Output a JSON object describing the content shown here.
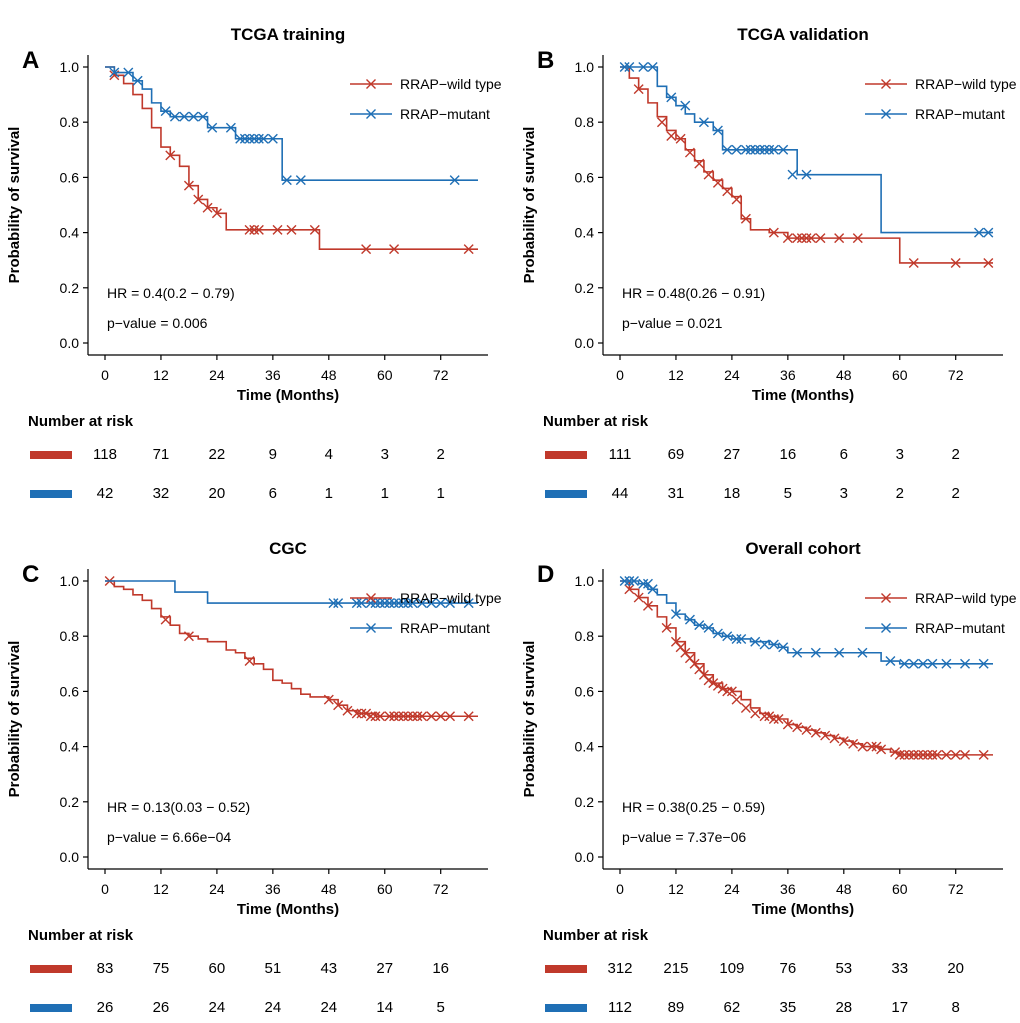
{
  "chart_data": [
    {
      "type": "line",
      "panel": "A",
      "title": "TCGA training",
      "xlabel": "Time (Months)",
      "ylabel": "Probability of survival",
      "xlim": [
        0,
        80
      ],
      "ylim": [
        0,
        1
      ],
      "x_ticks": [
        0,
        12,
        24,
        36,
        48,
        60,
        72
      ],
      "y_ticks": [
        0.0,
        0.2,
        0.4,
        0.6,
        0.8,
        1.0
      ],
      "y_tick_labels": [
        "0.0",
        "0.2",
        "0.4",
        "0.6",
        "0.8",
        "1.0"
      ],
      "legend": "top-right",
      "annotations": [
        "HR = 0.4(0.2 − 0.79)",
        "p−value = 0.006"
      ],
      "series": [
        {
          "name": "RRAP−wild type",
          "color": "#c0392b",
          "x": [
            0,
            2,
            4,
            6,
            8,
            10,
            12,
            14,
            16,
            18,
            20,
            22,
            24,
            26,
            30,
            36,
            42,
            46,
            80
          ],
          "y": [
            1.0,
            0.97,
            0.94,
            0.9,
            0.85,
            0.78,
            0.71,
            0.68,
            0.64,
            0.57,
            0.52,
            0.49,
            0.47,
            0.41,
            0.41,
            0.41,
            0.41,
            0.34,
            0.34
          ],
          "censor_x": [
            2,
            14,
            18,
            20,
            22,
            24,
            31,
            32,
            33,
            37,
            40,
            45,
            56,
            62,
            78
          ],
          "censor_y": [
            0.97,
            0.68,
            0.57,
            0.52,
            0.49,
            0.47,
            0.41,
            0.41,
            0.41,
            0.41,
            0.41,
            0.41,
            0.34,
            0.34,
            0.34
          ]
        },
        {
          "name": "RRAP−mutant",
          "color": "#1f6fb5",
          "x": [
            0,
            2,
            6,
            8,
            10,
            12,
            14,
            22,
            28,
            36,
            38,
            80
          ],
          "y": [
            1.0,
            0.98,
            0.95,
            0.92,
            0.87,
            0.84,
            0.82,
            0.78,
            0.74,
            0.74,
            0.59,
            0.59
          ],
          "censor_x": [
            2,
            5,
            7,
            13,
            15,
            17,
            19,
            21,
            23,
            27,
            29,
            30,
            31,
            32,
            33,
            34,
            36,
            39,
            42,
            75
          ],
          "censor_y": [
            0.98,
            0.98,
            0.95,
            0.84,
            0.82,
            0.82,
            0.82,
            0.82,
            0.78,
            0.78,
            0.74,
            0.74,
            0.74,
            0.74,
            0.74,
            0.74,
            0.74,
            0.59,
            0.59,
            0.59
          ]
        }
      ],
      "risk_table": {
        "title": "Number at risk",
        "times": [
          0,
          12,
          24,
          36,
          48,
          60,
          72
        ],
        "rows": [
          [
            118,
            71,
            22,
            9,
            4,
            3,
            2
          ],
          [
            42,
            32,
            20,
            6,
            1,
            1,
            1
          ]
        ]
      }
    },
    {
      "type": "line",
      "panel": "B",
      "title": "TCGA validation",
      "xlabel": "Time (Months)",
      "ylabel": "Probability of survival",
      "xlim": [
        0,
        80
      ],
      "ylim": [
        0,
        1
      ],
      "x_ticks": [
        0,
        12,
        24,
        36,
        48,
        60,
        72
      ],
      "y_ticks": [
        0.0,
        0.2,
        0.4,
        0.6,
        0.8,
        1.0
      ],
      "y_tick_labels": [
        "0.0",
        "0.2",
        "0.4",
        "0.6",
        "0.8",
        "1.0"
      ],
      "legend": "top-right",
      "annotations": [
        "HR = 0.48(0.26 − 0.91)",
        "p−value = 0.021"
      ],
      "series": [
        {
          "name": "RRAP−wild type",
          "color": "#c0392b",
          "x": [
            0,
            2,
            4,
            6,
            8,
            10,
            12,
            14,
            16,
            18,
            20,
            22,
            24,
            26,
            28,
            32,
            36,
            40,
            48,
            56,
            60,
            80
          ],
          "y": [
            1.0,
            0.96,
            0.92,
            0.87,
            0.82,
            0.77,
            0.74,
            0.7,
            0.66,
            0.62,
            0.59,
            0.56,
            0.53,
            0.45,
            0.41,
            0.4,
            0.38,
            0.38,
            0.38,
            0.38,
            0.29,
            0.29
          ],
          "censor_x": [
            4,
            9,
            11,
            13,
            15,
            17,
            19,
            21,
            23,
            25,
            27,
            33,
            36,
            38,
            39,
            40,
            41,
            43,
            47,
            51,
            63,
            72,
            79
          ],
          "censor_y": [
            0.92,
            0.8,
            0.75,
            0.74,
            0.69,
            0.65,
            0.61,
            0.58,
            0.55,
            0.52,
            0.45,
            0.4,
            0.38,
            0.38,
            0.38,
            0.38,
            0.38,
            0.38,
            0.38,
            0.38,
            0.29,
            0.29,
            0.29
          ]
        },
        {
          "name": "RRAP−mutant",
          "color": "#1f6fb5",
          "x": [
            0,
            6,
            8,
            10,
            12,
            14,
            16,
            20,
            22,
            35,
            38,
            56,
            80
          ],
          "y": [
            1.0,
            1.0,
            0.93,
            0.89,
            0.86,
            0.83,
            0.8,
            0.77,
            0.7,
            0.7,
            0.61,
            0.4,
            0.4
          ],
          "censor_x": [
            1,
            2,
            5,
            7,
            11,
            14,
            18,
            21,
            23,
            25,
            27,
            28,
            29,
            30,
            31,
            32,
            33,
            35,
            37,
            40,
            77,
            79
          ],
          "censor_y": [
            1.0,
            1.0,
            1.0,
            1.0,
            0.89,
            0.86,
            0.8,
            0.77,
            0.7,
            0.7,
            0.7,
            0.7,
            0.7,
            0.7,
            0.7,
            0.7,
            0.7,
            0.7,
            0.61,
            0.61,
            0.4,
            0.4
          ]
        }
      ],
      "risk_table": {
        "title": "Number at risk",
        "times": [
          0,
          12,
          24,
          36,
          48,
          60,
          72
        ],
        "rows": [
          [
            111,
            69,
            27,
            16,
            6,
            3,
            2
          ],
          [
            44,
            31,
            18,
            5,
            3,
            2,
            2
          ]
        ]
      }
    },
    {
      "type": "line",
      "panel": "C",
      "title": "CGC",
      "xlabel": "Time (Months)",
      "ylabel": "Probability of survival",
      "xlim": [
        0,
        80
      ],
      "ylim": [
        0,
        1
      ],
      "x_ticks": [
        0,
        12,
        24,
        36,
        48,
        60,
        72
      ],
      "y_ticks": [
        0.0,
        0.2,
        0.4,
        0.6,
        0.8,
        1.0
      ],
      "y_tick_labels": [
        "0.0",
        "0.2",
        "0.4",
        "0.6",
        "0.8",
        "1.0"
      ],
      "legend": "top-right",
      "annotations": [
        "HR = 0.13(0.03 − 0.52)",
        "p−value = 6.66e−04"
      ],
      "series": [
        {
          "name": "RRAP−wild type",
          "color": "#c0392b",
          "x": [
            0,
            2,
            4,
            6,
            8,
            10,
            12,
            14,
            16,
            18,
            20,
            22,
            24,
            26,
            28,
            30,
            32,
            34,
            36,
            38,
            40,
            42,
            44,
            46,
            48,
            50,
            52,
            54,
            56,
            58,
            80
          ],
          "y": [
            1.0,
            0.98,
            0.97,
            0.95,
            0.93,
            0.9,
            0.87,
            0.84,
            0.81,
            0.8,
            0.79,
            0.78,
            0.78,
            0.75,
            0.74,
            0.72,
            0.7,
            0.68,
            0.64,
            0.63,
            0.61,
            0.59,
            0.58,
            0.58,
            0.57,
            0.55,
            0.53,
            0.52,
            0.52,
            0.51,
            0.51
          ],
          "censor_x": [
            1,
            13,
            18,
            31,
            48,
            50,
            52,
            54,
            55,
            56,
            57,
            58,
            59,
            61,
            62,
            63,
            64,
            65,
            66,
            67,
            68,
            70,
            72,
            74,
            78
          ],
          "censor_y": [
            1.0,
            0.86,
            0.8,
            0.71,
            0.57,
            0.55,
            0.53,
            0.52,
            0.52,
            0.52,
            0.51,
            0.51,
            0.51,
            0.51,
            0.51,
            0.51,
            0.51,
            0.51,
            0.51,
            0.51,
            0.51,
            0.51,
            0.51,
            0.51,
            0.51
          ]
        },
        {
          "name": "RRAP−mutant",
          "color": "#1f6fb5",
          "x": [
            0,
            15,
            22,
            80
          ],
          "y": [
            1.0,
            0.96,
            0.92,
            0.92
          ],
          "censor_x": [
            49,
            50,
            54,
            55,
            57,
            58,
            59,
            60,
            61,
            62,
            63,
            64,
            65,
            66,
            68,
            70,
            72,
            74,
            78
          ],
          "censor_y": [
            0.92,
            0.92,
            0.92,
            0.92,
            0.92,
            0.92,
            0.92,
            0.92,
            0.92,
            0.92,
            0.92,
            0.92,
            0.92,
            0.92,
            0.92,
            0.92,
            0.92,
            0.92,
            0.92
          ]
        }
      ],
      "risk_table": {
        "title": "Number at risk",
        "times": [
          0,
          12,
          24,
          36,
          48,
          60,
          72
        ],
        "rows": [
          [
            83,
            75,
            60,
            51,
            43,
            27,
            16
          ],
          [
            26,
            26,
            24,
            24,
            24,
            14,
            5
          ]
        ]
      }
    },
    {
      "type": "line",
      "panel": "D",
      "title": "Overall cohort",
      "xlabel": "Time (Months)",
      "ylabel": "Probability of survival",
      "xlim": [
        0,
        80
      ],
      "ylim": [
        0,
        1
      ],
      "x_ticks": [
        0,
        12,
        24,
        36,
        48,
        60,
        72
      ],
      "y_ticks": [
        0.0,
        0.2,
        0.4,
        0.6,
        0.8,
        1.0
      ],
      "y_tick_labels": [
        "0.0",
        "0.2",
        "0.4",
        "0.6",
        "0.8",
        "1.0"
      ],
      "legend": "top-right",
      "annotations": [
        "HR = 0.38(0.25 − 0.59)",
        "p−value = 7.37e−06"
      ],
      "series": [
        {
          "name": "RRAP−wild type",
          "color": "#c0392b",
          "x": [
            0,
            2,
            4,
            6,
            8,
            10,
            12,
            14,
            16,
            18,
            20,
            22,
            24,
            26,
            28,
            30,
            32,
            34,
            36,
            38,
            40,
            42,
            44,
            46,
            48,
            50,
            52,
            54,
            56,
            58,
            60,
            80
          ],
          "y": [
            1.0,
            0.97,
            0.94,
            0.91,
            0.87,
            0.83,
            0.78,
            0.74,
            0.7,
            0.66,
            0.63,
            0.61,
            0.6,
            0.57,
            0.54,
            0.52,
            0.51,
            0.5,
            0.48,
            0.47,
            0.46,
            0.45,
            0.44,
            0.43,
            0.42,
            0.41,
            0.4,
            0.4,
            0.39,
            0.38,
            0.37,
            0.37
          ],
          "censor_x": [
            2,
            4,
            6,
            10,
            12,
            13,
            14,
            15,
            16,
            17,
            18,
            19,
            20,
            21,
            22,
            23,
            24,
            25,
            27,
            29,
            31,
            32,
            33,
            34,
            36,
            38,
            40,
            42,
            44,
            46,
            48,
            50,
            52,
            54,
            55,
            56,
            59,
            60,
            61,
            62,
            63,
            64,
            65,
            66,
            67,
            68,
            70,
            72,
            74,
            78
          ],
          "censor_y": [
            0.97,
            0.94,
            0.91,
            0.83,
            0.78,
            0.76,
            0.74,
            0.72,
            0.7,
            0.68,
            0.66,
            0.64,
            0.63,
            0.62,
            0.61,
            0.6,
            0.6,
            0.57,
            0.54,
            0.52,
            0.51,
            0.51,
            0.5,
            0.5,
            0.48,
            0.47,
            0.46,
            0.45,
            0.44,
            0.43,
            0.42,
            0.41,
            0.4,
            0.4,
            0.4,
            0.39,
            0.38,
            0.37,
            0.37,
            0.37,
            0.37,
            0.37,
            0.37,
            0.37,
            0.37,
            0.37,
            0.37,
            0.37,
            0.37,
            0.37
          ]
        },
        {
          "name": "RRAP−mutant",
          "color": "#1f6fb5",
          "x": [
            0,
            4,
            6,
            8,
            10,
            12,
            14,
            16,
            18,
            20,
            22,
            24,
            28,
            32,
            34,
            36,
            40,
            56,
            60,
            80
          ],
          "y": [
            1.0,
            0.99,
            0.97,
            0.95,
            0.92,
            0.88,
            0.86,
            0.84,
            0.83,
            0.81,
            0.8,
            0.79,
            0.78,
            0.77,
            0.76,
            0.74,
            0.74,
            0.71,
            0.7,
            0.7
          ],
          "censor_x": [
            1,
            2,
            3,
            5,
            6,
            7,
            12,
            15,
            17,
            19,
            21,
            23,
            25,
            26,
            29,
            31,
            33,
            35,
            38,
            42,
            47,
            52,
            58,
            61,
            63,
            65,
            67,
            70,
            74,
            78
          ],
          "censor_y": [
            1.0,
            1.0,
            1.0,
            0.99,
            0.99,
            0.97,
            0.88,
            0.86,
            0.84,
            0.83,
            0.81,
            0.8,
            0.79,
            0.79,
            0.78,
            0.77,
            0.77,
            0.76,
            0.74,
            0.74,
            0.74,
            0.74,
            0.71,
            0.7,
            0.7,
            0.7,
            0.7,
            0.7,
            0.7,
            0.7
          ]
        }
      ],
      "risk_table": {
        "title": "Number at risk",
        "times": [
          0,
          12,
          24,
          36,
          48,
          60,
          72
        ],
        "rows": [
          [
            312,
            215,
            109,
            76,
            53,
            33,
            20
          ],
          [
            112,
            89,
            62,
            35,
            28,
            17,
            8
          ]
        ]
      }
    }
  ]
}
